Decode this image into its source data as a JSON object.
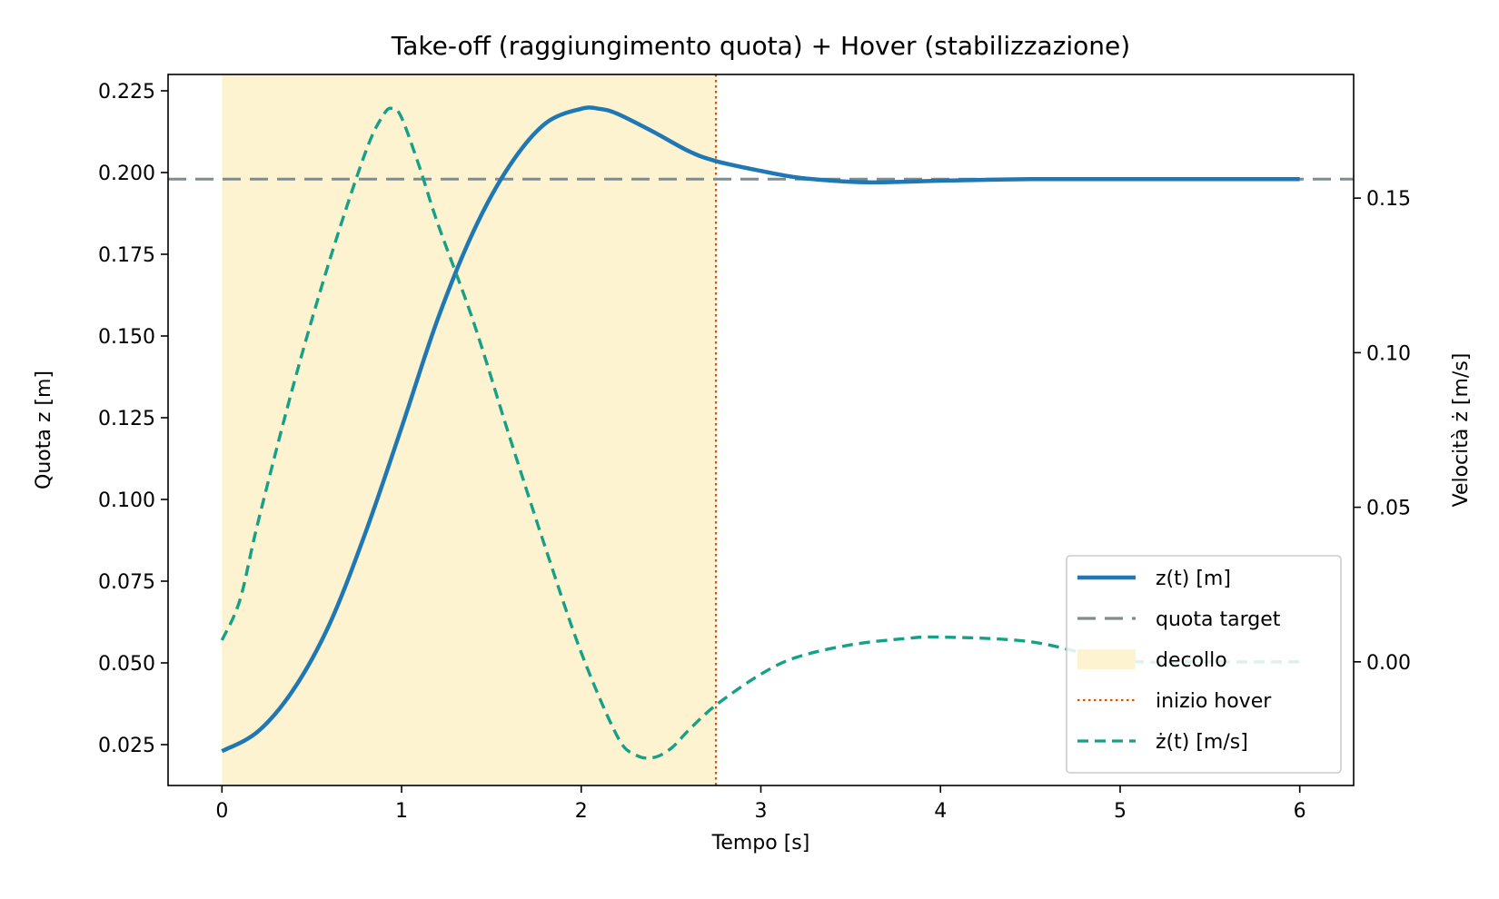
{
  "chart_data": {
    "type": "line",
    "title": "Take-off (raggiungimento quota) + Hover (stabilizzazione)",
    "xlabel": "Tempo [s]",
    "ylabel_left": "Quota z [m]",
    "ylabel_right": "Velocità ż [m/s]",
    "xlim": [
      -0.3,
      6.3
    ],
    "ylim_left": [
      0.0125,
      0.23
    ],
    "ylim_right": [
      -0.04,
      0.19
    ],
    "x_ticks": [
      0,
      1,
      2,
      3,
      4,
      5,
      6
    ],
    "x_tick_labels": [
      "0",
      "1",
      "2",
      "3",
      "4",
      "5",
      "6"
    ],
    "y_left_ticks": [
      0.025,
      0.05,
      0.075,
      0.1,
      0.125,
      0.15,
      0.175,
      0.2,
      0.225
    ],
    "y_left_tick_labels": [
      "0.025",
      "0.050",
      "0.075",
      "0.100",
      "0.125",
      "0.150",
      "0.175",
      "0.200",
      "0.225"
    ],
    "y_right_ticks": [
      0.0,
      0.05,
      0.1,
      0.15
    ],
    "y_right_tick_labels": [
      "0.00",
      "0.05",
      "0.10",
      "0.15"
    ],
    "grid": false,
    "legend_position": "lower-right",
    "target_altitude": 0.198,
    "takeoff_span": [
      0,
      2.75
    ],
    "hover_start": 2.75,
    "colors": {
      "altitude": "#1f77b4",
      "target": "#7f8c8d",
      "takeoff_fill": "#fdf3d0",
      "hover_line": "#d35400",
      "velocity": "#16a085"
    },
    "series": [
      {
        "name": "z(t) [m]",
        "axis": "left",
        "style": "solid",
        "x": [
          0,
          0.2,
          0.4,
          0.6,
          0.8,
          1.0,
          1.2,
          1.4,
          1.6,
          1.8,
          2.0,
          2.1,
          2.2,
          2.4,
          2.6,
          2.75,
          3.0,
          3.2,
          3.4,
          3.6,
          3.8,
          4.0,
          4.5,
          5.0,
          5.5,
          6.0
        ],
        "y": [
          0.023,
          0.029,
          0.042,
          0.062,
          0.09,
          0.122,
          0.155,
          0.182,
          0.202,
          0.215,
          0.2195,
          0.2195,
          0.218,
          0.2125,
          0.2065,
          0.2035,
          0.2005,
          0.1985,
          0.1975,
          0.197,
          0.1972,
          0.1975,
          0.198,
          0.198,
          0.198,
          0.198
        ]
      },
      {
        "name": "quota target",
        "axis": "left",
        "style": "dashed",
        "x": [
          -0.3,
          6.3
        ],
        "y": [
          0.198,
          0.198
        ]
      },
      {
        "name": "ż(t) [m/s]",
        "axis": "right",
        "style": "dashed",
        "x": [
          0,
          0.1,
          0.2,
          0.4,
          0.6,
          0.8,
          0.9,
          0.95,
          1.0,
          1.1,
          1.2,
          1.4,
          1.6,
          1.8,
          2.0,
          2.2,
          2.3,
          2.4,
          2.5,
          2.6,
          2.75,
          3.0,
          3.2,
          3.5,
          3.8,
          4.0,
          4.5,
          5.0,
          5.5,
          6.0
        ],
        "y": [
          0.007,
          0.02,
          0.045,
          0.09,
          0.13,
          0.165,
          0.177,
          0.179,
          0.176,
          0.16,
          0.142,
          0.11,
          0.073,
          0.037,
          0.003,
          -0.024,
          -0.03,
          -0.031,
          -0.028,
          -0.022,
          -0.014,
          -0.004,
          0.0015,
          0.0055,
          0.0075,
          0.008,
          0.0065,
          0.0005,
          0.0,
          0.0
        ]
      }
    ],
    "legend": [
      {
        "label": "z(t) [m]",
        "kind": "solid",
        "color": "#1f77b4"
      },
      {
        "label": "quota target",
        "kind": "dashed",
        "color": "#7f8c8d"
      },
      {
        "label": "decollo",
        "kind": "fill",
        "color": "#fdf3d0"
      },
      {
        "label": "inizio hover",
        "kind": "dotted",
        "color": "#d35400"
      },
      {
        "label": "ż(t) [m/s]",
        "kind": "dashed",
        "color": "#16a085"
      }
    ]
  }
}
